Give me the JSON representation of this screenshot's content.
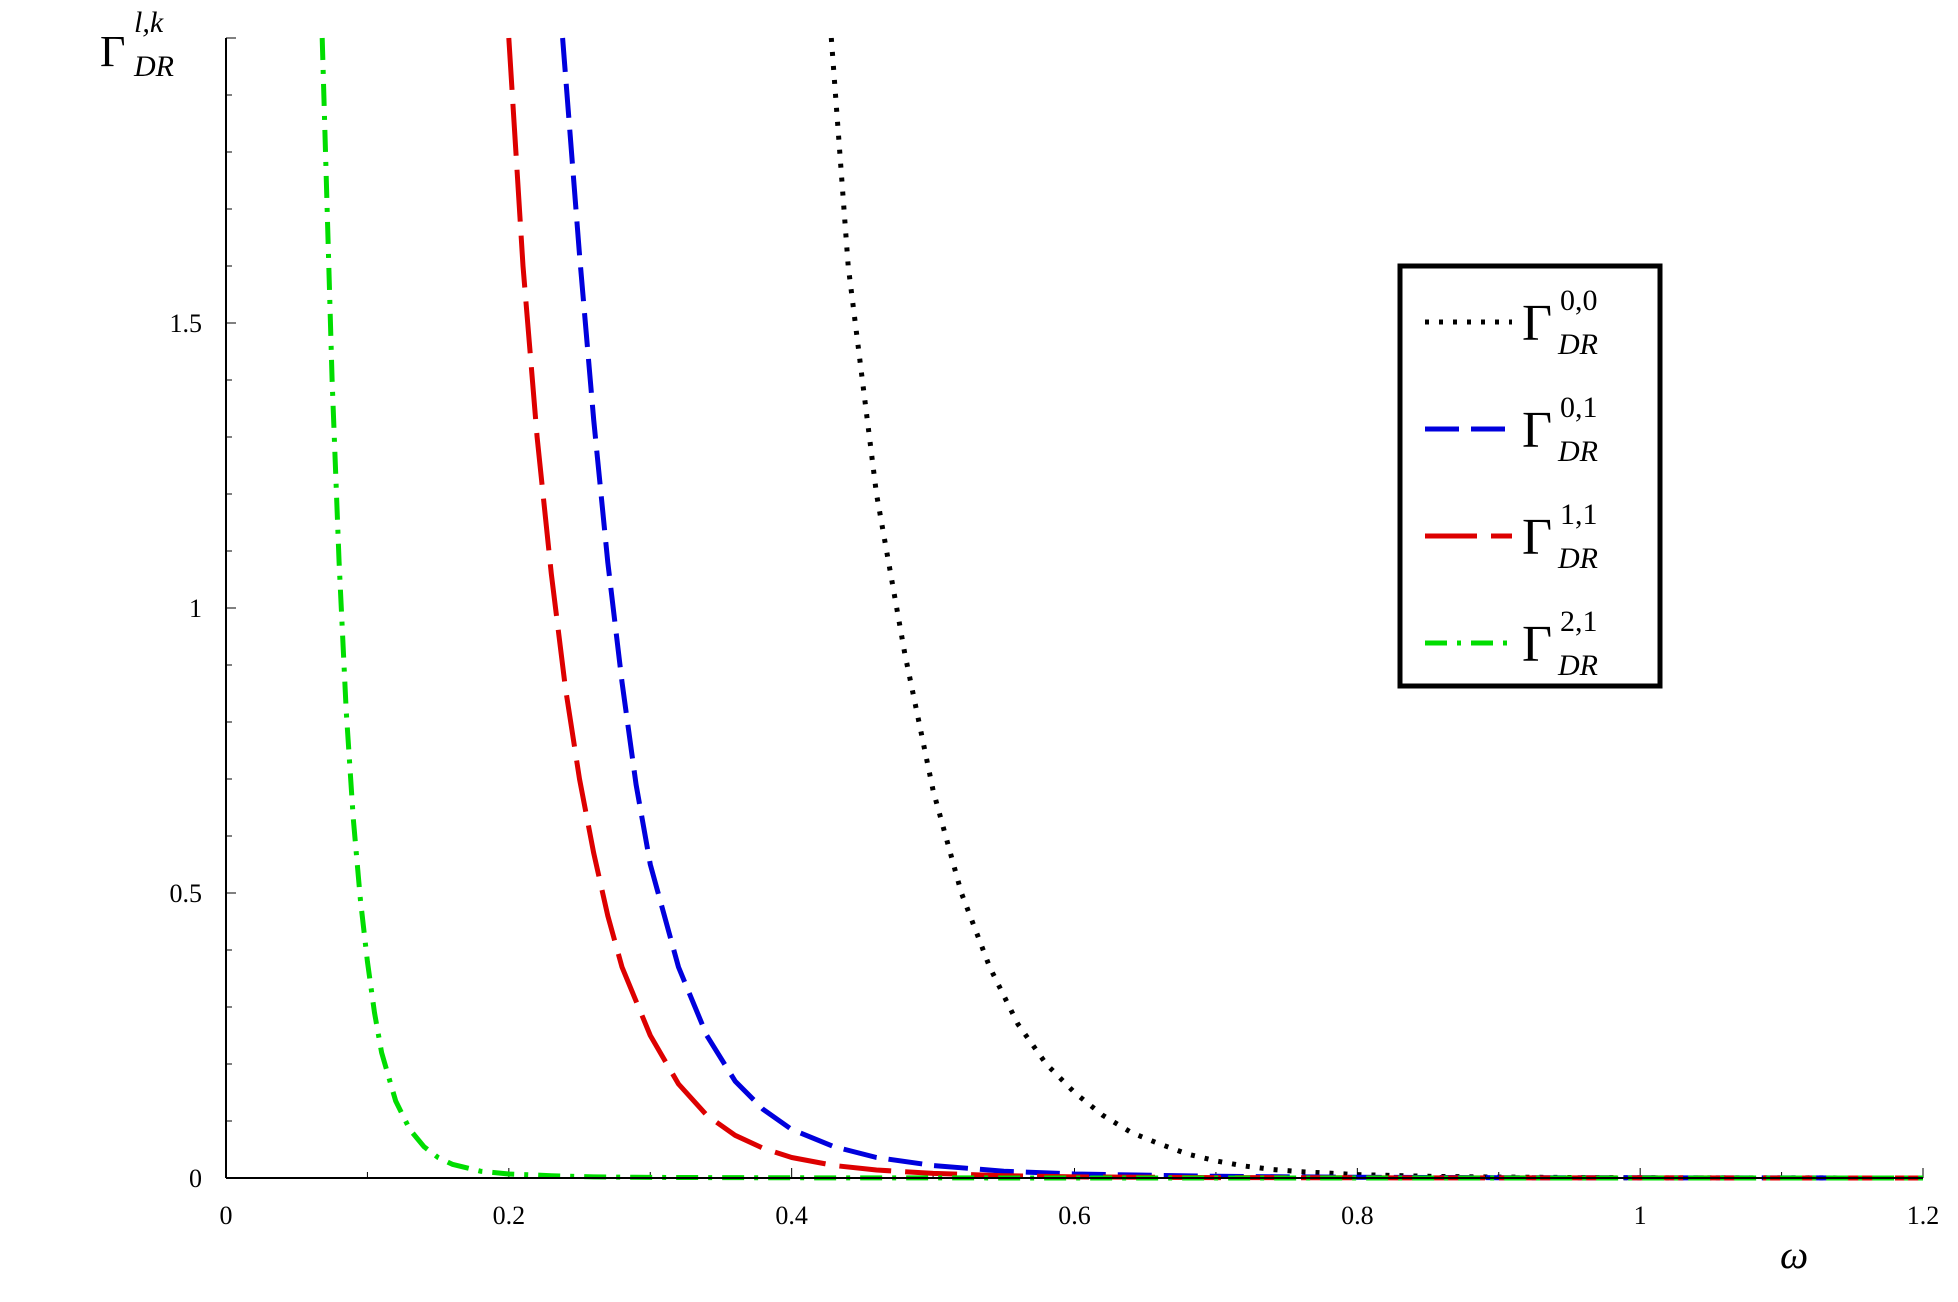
{
  "chart_data": {
    "type": "line",
    "xlabel": "ω",
    "ylabel": {
      "base": "Γ",
      "sup": "l,k",
      "sub": "DR"
    },
    "xlim": [
      0,
      1.2
    ],
    "ylim": [
      0,
      2.0
    ],
    "x_ticks": [
      "0",
      "0.2",
      "0.4",
      "0.6",
      "0.8",
      "1",
      "1.2"
    ],
    "y_ticks": [
      "0",
      "0.5",
      "1",
      "1.5"
    ],
    "grid": false,
    "legend_position": "right",
    "series": [
      {
        "name": "Γ^{0,0}_{DR}",
        "legend": {
          "base": "Γ",
          "sup": "0,0",
          "sub": "DR"
        },
        "color": "#000000",
        "style": "dotted",
        "x": [
          0.428,
          0.44,
          0.46,
          0.48,
          0.5,
          0.52,
          0.54,
          0.56,
          0.58,
          0.6,
          0.62,
          0.64,
          0.66,
          0.68,
          0.7,
          0.72,
          0.74,
          0.76,
          0.8,
          0.85,
          0.9,
          1.0,
          1.1,
          1.2
        ],
        "y": [
          2.0,
          1.6,
          1.2,
          0.92,
          0.68,
          0.5,
          0.37,
          0.27,
          0.2,
          0.15,
          0.11,
          0.08,
          0.06,
          0.042,
          0.03,
          0.021,
          0.015,
          0.011,
          0.006,
          0.003,
          0.0015,
          0.0004,
          0.0001,
          0.0
        ]
      },
      {
        "name": "Γ^{0,1}_{DR}",
        "legend": {
          "base": "Γ",
          "sup": "0,1",
          "sub": "DR"
        },
        "color": "#0000dd",
        "style": "dashed",
        "x": [
          0.238,
          0.25,
          0.26,
          0.27,
          0.28,
          0.29,
          0.3,
          0.32,
          0.34,
          0.36,
          0.38,
          0.4,
          0.43,
          0.46,
          0.5,
          0.55,
          0.6,
          0.7,
          0.8,
          0.9,
          1.0,
          1.2
        ],
        "y": [
          2.0,
          1.62,
          1.33,
          1.08,
          0.87,
          0.69,
          0.55,
          0.37,
          0.25,
          0.17,
          0.12,
          0.085,
          0.055,
          0.036,
          0.022,
          0.012,
          0.007,
          0.003,
          0.0013,
          0.0006,
          0.0003,
          0.0
        ]
      },
      {
        "name": "Γ^{1,1}_{DR}",
        "legend": {
          "base": "Γ",
          "sup": "1,1",
          "sub": "DR"
        },
        "color": "#dd0000",
        "style": "longdash",
        "x": [
          0.2,
          0.21,
          0.22,
          0.23,
          0.24,
          0.25,
          0.26,
          0.27,
          0.28,
          0.3,
          0.32,
          0.34,
          0.36,
          0.38,
          0.4,
          0.43,
          0.46,
          0.5,
          0.55,
          0.6,
          0.7,
          0.8,
          1.0,
          1.2
        ],
        "y": [
          2.0,
          1.6,
          1.3,
          1.06,
          0.86,
          0.7,
          0.57,
          0.46,
          0.37,
          0.25,
          0.165,
          0.11,
          0.075,
          0.052,
          0.036,
          0.022,
          0.014,
          0.008,
          0.004,
          0.002,
          0.0007,
          0.0003,
          0.0001,
          0.0
        ]
      },
      {
        "name": "Γ^{2,1}_{DR}",
        "legend": {
          "base": "Γ",
          "sup": "2,1",
          "sub": "DR"
        },
        "color": "#00dd00",
        "style": "dashdot",
        "x": [
          0.068,
          0.075,
          0.08,
          0.085,
          0.09,
          0.095,
          0.1,
          0.105,
          0.11,
          0.12,
          0.13,
          0.14,
          0.15,
          0.16,
          0.18,
          0.2,
          0.23,
          0.26,
          0.3,
          0.4,
          0.5,
          0.6,
          0.8,
          1.0,
          1.2
        ],
        "y": [
          2.0,
          1.4,
          1.08,
          0.82,
          0.63,
          0.49,
          0.38,
          0.29,
          0.22,
          0.135,
          0.085,
          0.055,
          0.036,
          0.024,
          0.012,
          0.007,
          0.004,
          0.002,
          0.001,
          0.0003,
          0.0001,
          0.0,
          0.0,
          0.0,
          0.0
        ]
      }
    ]
  }
}
